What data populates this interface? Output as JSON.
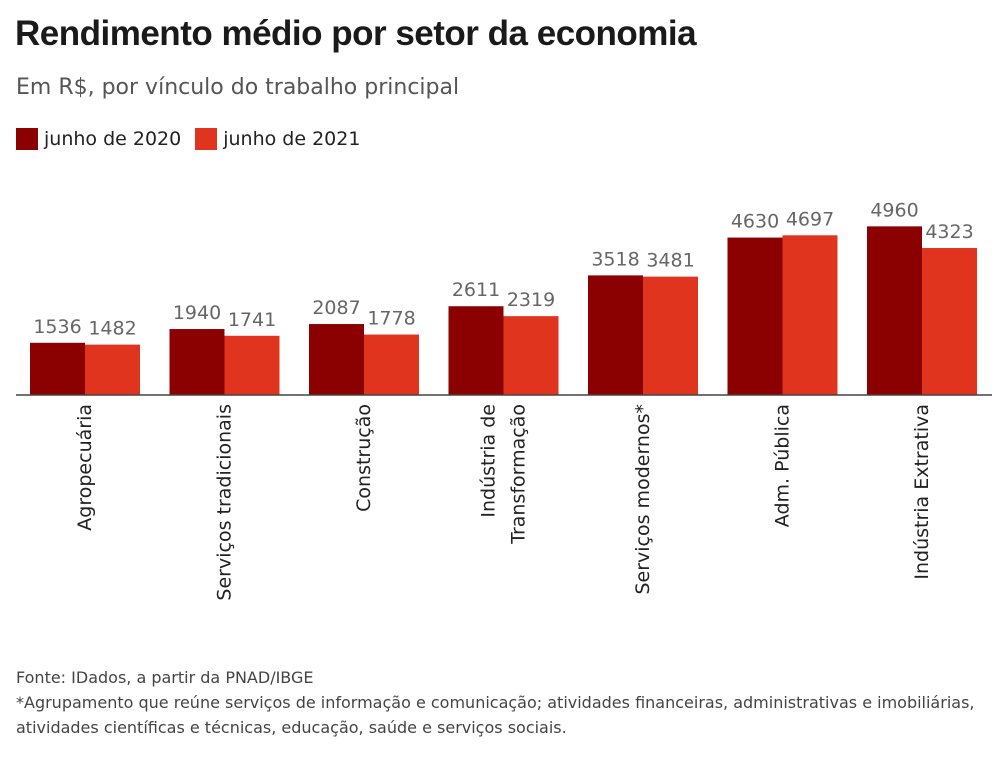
{
  "header": {
    "title": "Rendimento médio por setor da economia",
    "subtitle": "Em R$, por vínculo do trabalho principal"
  },
  "legend": [
    {
      "label": "junho de 2020",
      "color": "#8b0000"
    },
    {
      "label": "junho de 2021",
      "color": "#e0341f"
    }
  ],
  "footer": {
    "source": "Fonte: IDados, a partir da PNAD/IBGE",
    "note_line1": "*Agrupamento que reúne serviços de informação e comunicação; atividades financeiras, administrativas e imobiliárias,",
    "note_line2": "atividades científicas e técnicas, educação, saúde e serviços sociais."
  },
  "chart_data": {
    "type": "bar",
    "title": "Rendimento médio por setor da economia",
    "ylabel": "",
    "xlabel": "",
    "ylim": [
      0,
      5800
    ],
    "grid": false,
    "categories": [
      [
        "Agropecuária"
      ],
      [
        "Serviços tradicionais"
      ],
      [
        "Construção"
      ],
      [
        "Indústria de",
        "Transformação"
      ],
      [
        "Serviços modernos*"
      ],
      [
        "Adm. Pública"
      ],
      [
        "Indústria Extrativa"
      ]
    ],
    "series": [
      {
        "name": "junho de 2020",
        "color": "#8b0000",
        "values": [
          1536,
          1940,
          2087,
          2611,
          3518,
          4630,
          4960
        ]
      },
      {
        "name": "junho de 2021",
        "color": "#e0341f",
        "values": [
          1482,
          1741,
          1778,
          2319,
          3481,
          4697,
          4323
        ]
      }
    ]
  }
}
